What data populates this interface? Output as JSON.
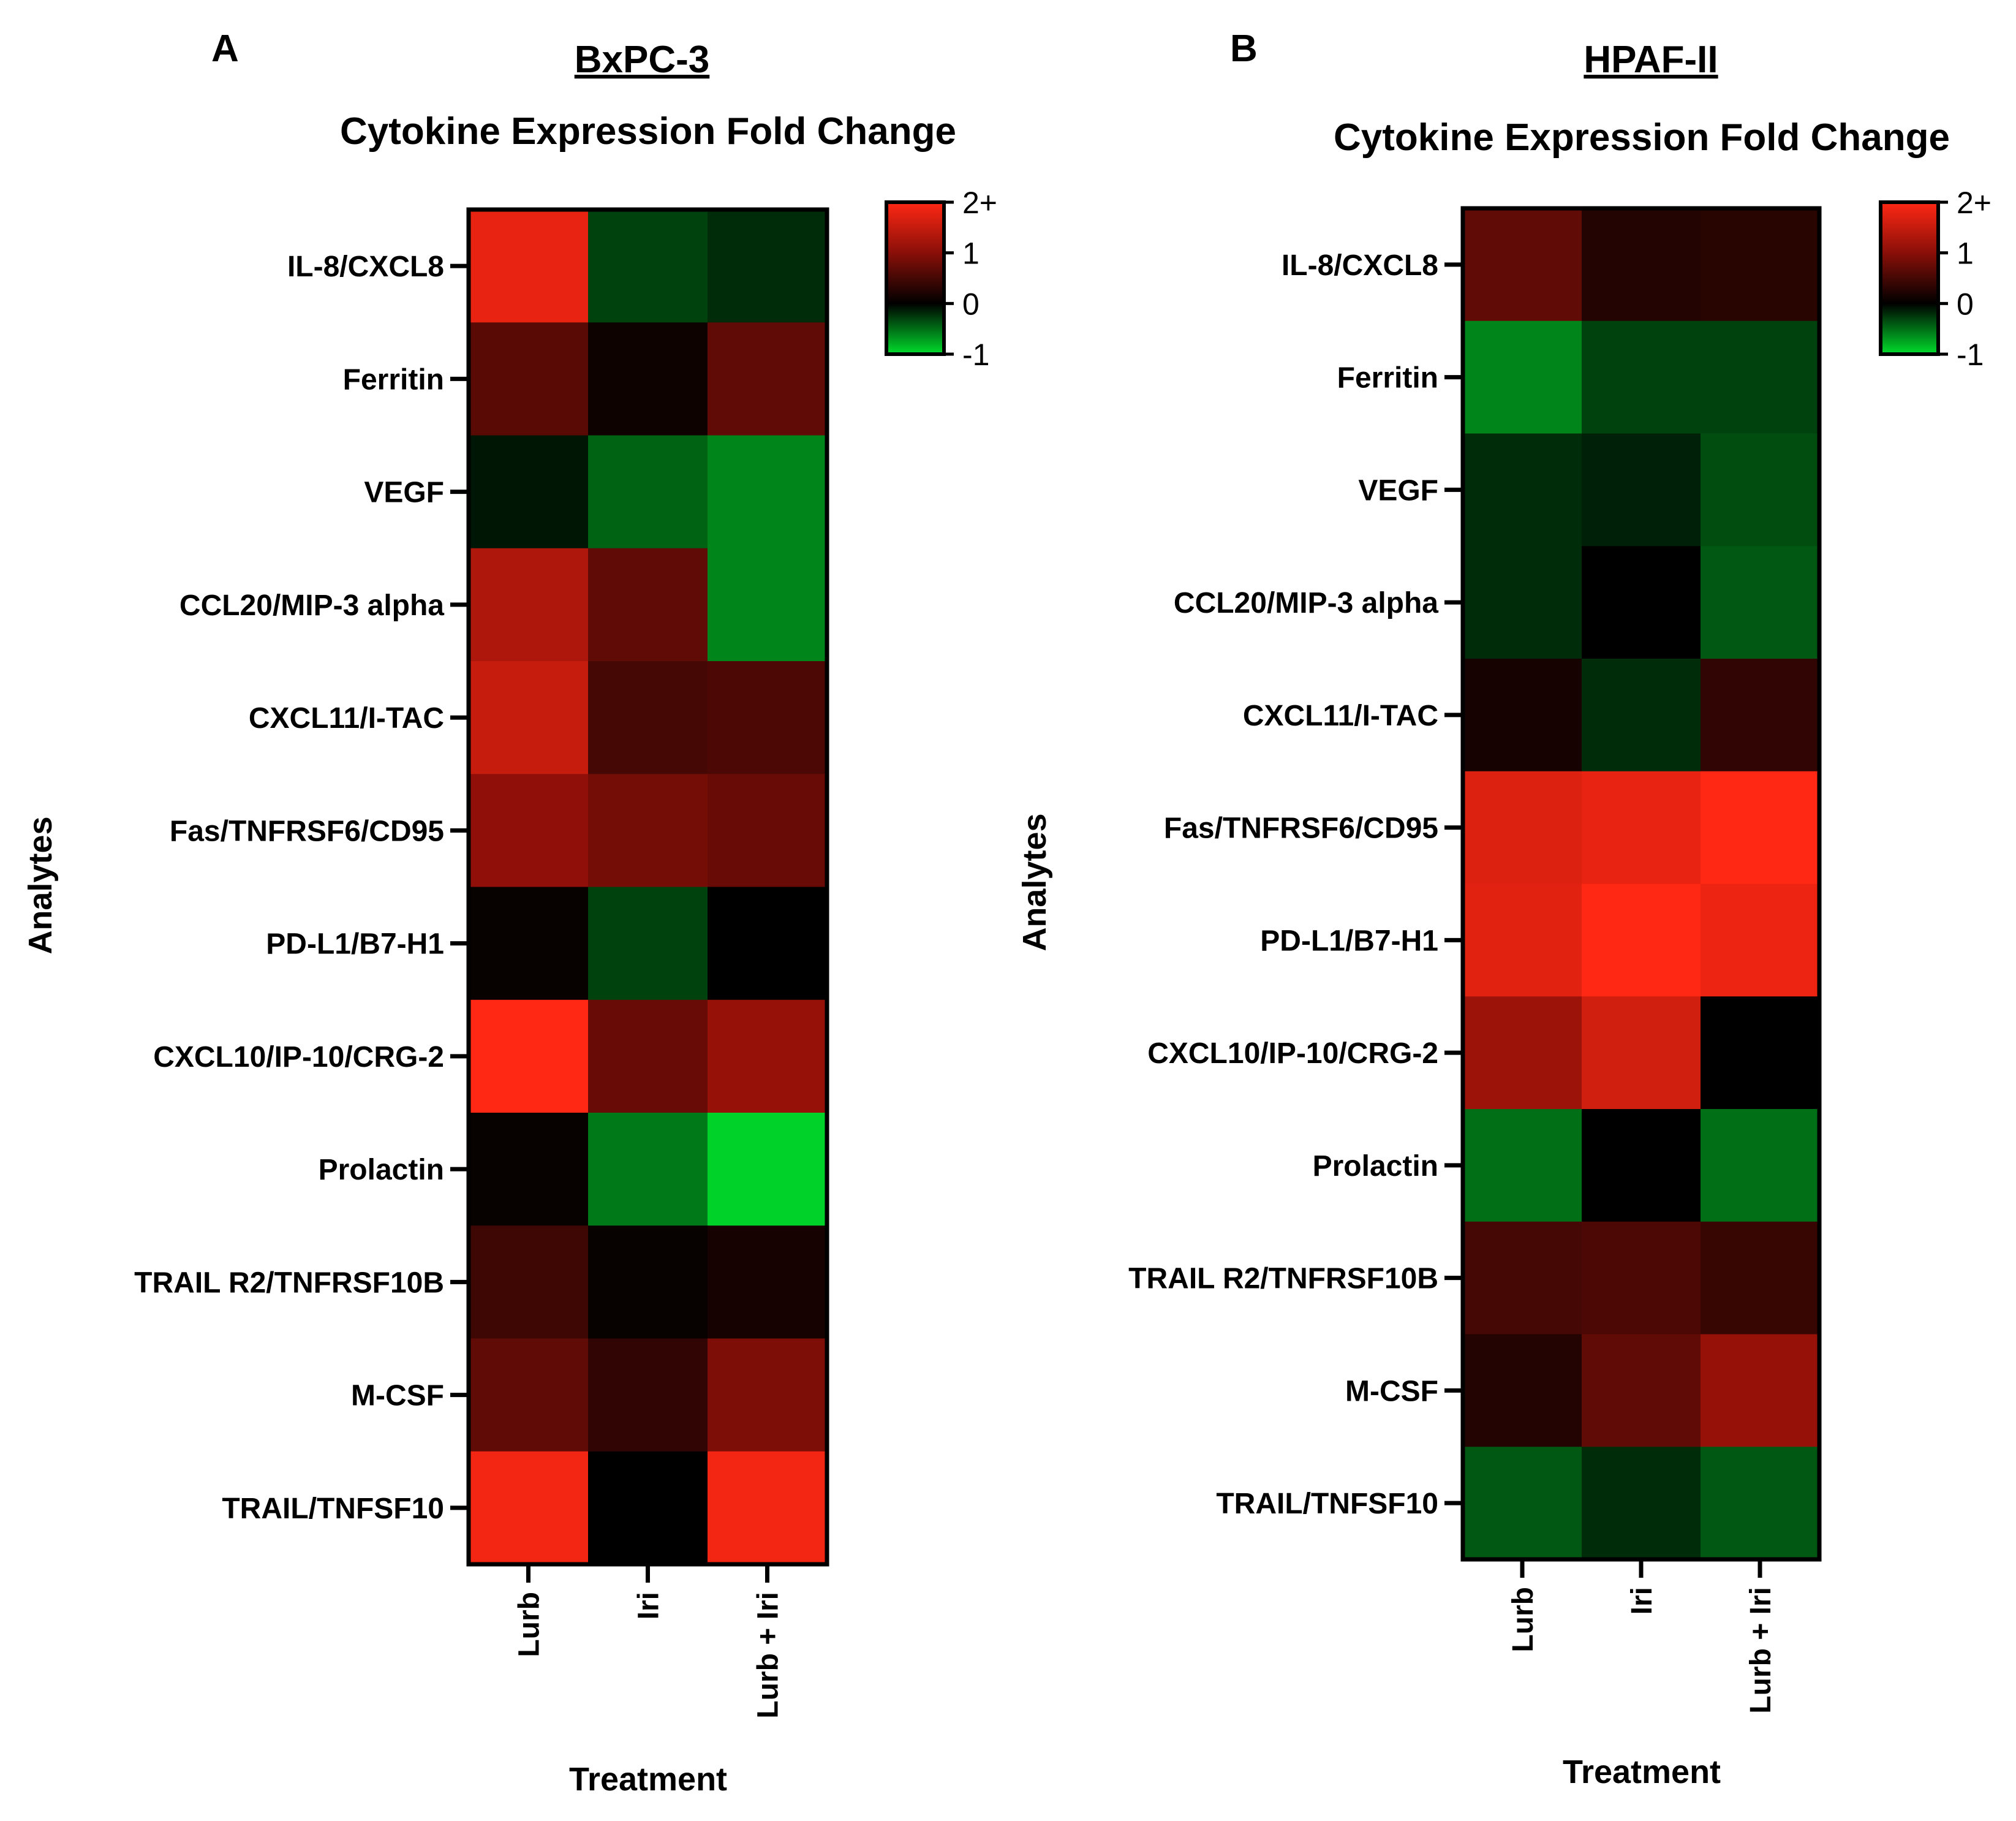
{
  "colorscale": {
    "min": -1,
    "max": 2,
    "stops": [
      {
        "v": -1,
        "color": "#00dd2c"
      },
      {
        "v": 0,
        "color": "#000000"
      },
      {
        "v": 1,
        "color": "#8a0f08"
      },
      {
        "v": 2,
        "color": "#ff2814"
      }
    ],
    "tick_labels": [
      "2+",
      "1",
      "0",
      "-1"
    ],
    "tick_values": [
      2,
      1,
      0,
      -1
    ]
  },
  "panels": [
    {
      "letter": "A",
      "cell_line": "BxPC-3",
      "title": "Cytokine Expression Fold Change",
      "ylabel": "Analytes",
      "xlabel": "Treatment"
    },
    {
      "letter": "B",
      "cell_line": "HPAF-II",
      "title": "Cytokine Expression Fold Change",
      "ylabel": "Analytes",
      "xlabel": "Treatment"
    }
  ],
  "chart_data": [
    {
      "type": "heatmap",
      "title": "Cytokine Expression Fold Change",
      "subtitle": "BxPC-3",
      "xlabel": "Treatment",
      "ylabel": "Analytes",
      "x_categories": [
        "Lurb",
        "Iri",
        "Lurb + Iri"
      ],
      "y_categories": [
        "IL-8/CXCL8",
        "Ferritin",
        "VEGF",
        "CCL20/MIP-3 alpha",
        "CXCL11/I-TAC",
        "Fas/TNFRSF6/CD95",
        "PD-L1/B7-H1",
        "CXCL10/IP-10/CRG-2",
        "Prolactin",
        "TRAIL R2/TNFRSF10B",
        "M-CSF",
        "TRAIL/TNFSF10"
      ],
      "colorbar_range": [
        -1,
        2
      ],
      "values": [
        [
          1.8,
          -0.3,
          -0.2
        ],
        [
          0.65,
          0.1,
          0.7
        ],
        [
          -0.1,
          -0.45,
          -0.6
        ],
        [
          1.3,
          0.7,
          -0.6
        ],
        [
          1.5,
          0.5,
          0.55
        ],
        [
          1.05,
          0.85,
          0.75
        ],
        [
          0.05,
          -0.3,
          0.0
        ],
        [
          2.0,
          0.75,
          1.1
        ],
        [
          0.05,
          -0.55,
          -0.95
        ],
        [
          0.45,
          0.05,
          0.15
        ],
        [
          0.7,
          0.35,
          0.9
        ],
        [
          1.9,
          0.0,
          1.9
        ]
      ]
    },
    {
      "type": "heatmap",
      "title": "Cytokine Expression Fold Change",
      "subtitle": "HPAF-II",
      "xlabel": "Treatment",
      "ylabel": "Analytes",
      "x_categories": [
        "Lurb",
        "Iri",
        "Lurb + Iri"
      ],
      "y_categories": [
        "IL-8/CXCL8",
        "Ferritin",
        "VEGF",
        "CCL20/MIP-3 alpha",
        "CXCL11/I-TAC",
        "Fas/TNFRSF6/CD95",
        "PD-L1/B7-H1",
        "CXCL10/IP-10/CRG-2",
        "Prolactin",
        "TRAIL R2/TNFRSF10B",
        "M-CSF",
        "TRAIL/TNFSF10"
      ],
      "colorbar_range": [
        -1,
        2
      ],
      "values": [
        [
          0.7,
          0.25,
          0.3
        ],
        [
          -0.6,
          -0.3,
          -0.3
        ],
        [
          -0.2,
          -0.15,
          -0.35
        ],
        [
          -0.2,
          0.0,
          -0.4
        ],
        [
          0.15,
          -0.2,
          0.35
        ],
        [
          1.7,
          1.8,
          2.0
        ],
        [
          1.75,
          2.0,
          1.85
        ],
        [
          1.15,
          1.6,
          0.0
        ],
        [
          -0.5,
          0.0,
          -0.5
        ],
        [
          0.5,
          0.55,
          0.4
        ],
        [
          0.25,
          0.7,
          1.1
        ],
        [
          -0.4,
          -0.2,
          -0.4
        ]
      ]
    }
  ]
}
